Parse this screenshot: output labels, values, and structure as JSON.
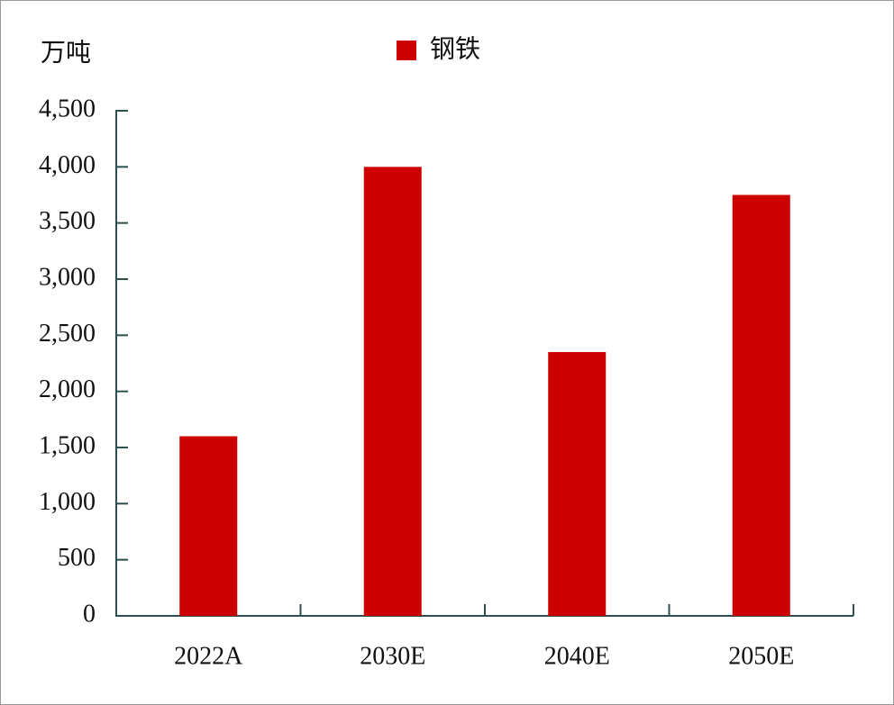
{
  "chart_data": {
    "type": "bar",
    "y_label": "万吨",
    "categories": [
      "2022A",
      "2030E",
      "2040E",
      "2050E"
    ],
    "series": [
      {
        "name": "钢铁",
        "color": "#cc0000",
        "values": [
          1600,
          4000,
          2350,
          3750
        ]
      }
    ],
    "ylim": [
      0,
      4500
    ],
    "yticks": [
      0,
      500,
      {
        "value": 1000,
        "label": "1,000"
      },
      {
        "value": 1500,
        "label": "1,500"
      },
      {
        "value": 2000,
        "label": "2,000"
      },
      {
        "value": 2500,
        "label": "2,500"
      },
      {
        "value": 3000,
        "label": "3,000"
      },
      {
        "value": 3500,
        "label": "3,500"
      },
      {
        "value": 4000,
        "label": "4,000"
      },
      {
        "value": 4500,
        "label": "4,500"
      }
    ],
    "legend": "top",
    "grid": false
  }
}
